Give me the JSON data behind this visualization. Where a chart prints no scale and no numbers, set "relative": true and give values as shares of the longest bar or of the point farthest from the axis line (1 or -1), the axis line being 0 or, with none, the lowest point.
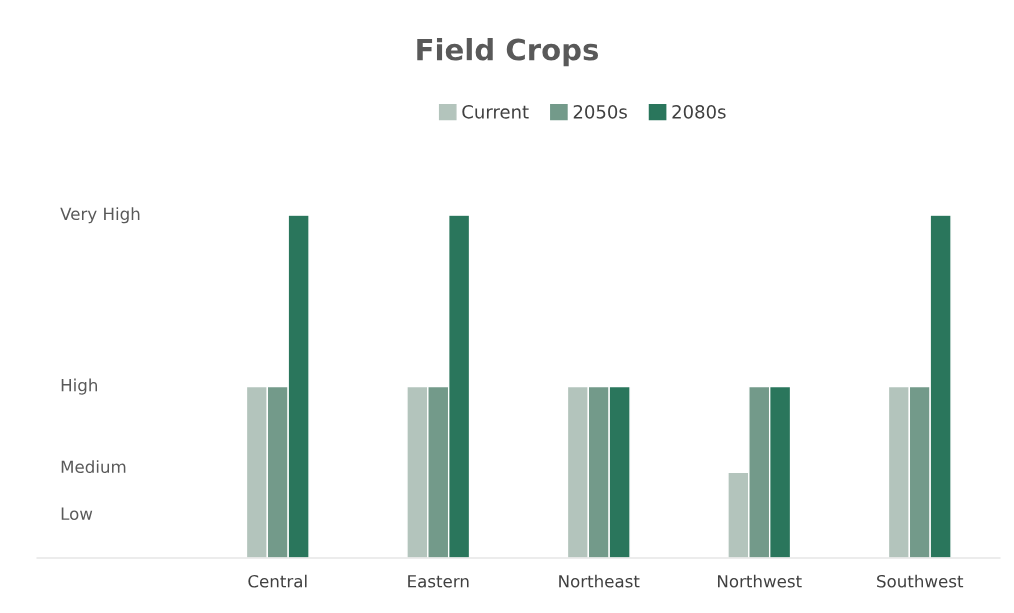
{
  "chart_data": {
    "type": "bar",
    "title": "Field Crops",
    "relative": true,
    "categories": [
      "Central",
      "Eastern",
      "Northeast",
      "Northwest",
      "Southwest"
    ],
    "series": [
      {
        "name": "Current",
        "color": "#b3c4bc",
        "values": [
          0.5,
          0.5,
          0.5,
          0.25,
          0.5
        ]
      },
      {
        "name": "2050s",
        "color": "#739a8a",
        "values": [
          0.5,
          0.5,
          0.5,
          0.5,
          0.5
        ]
      },
      {
        "name": "2080s",
        "color": "#2a765c",
        "values": [
          1,
          1,
          0.5,
          0.5,
          1
        ]
      }
    ],
    "annotations": [
      "Very High",
      "High",
      "Medium",
      "Low"
    ],
    "legend": "top"
  }
}
